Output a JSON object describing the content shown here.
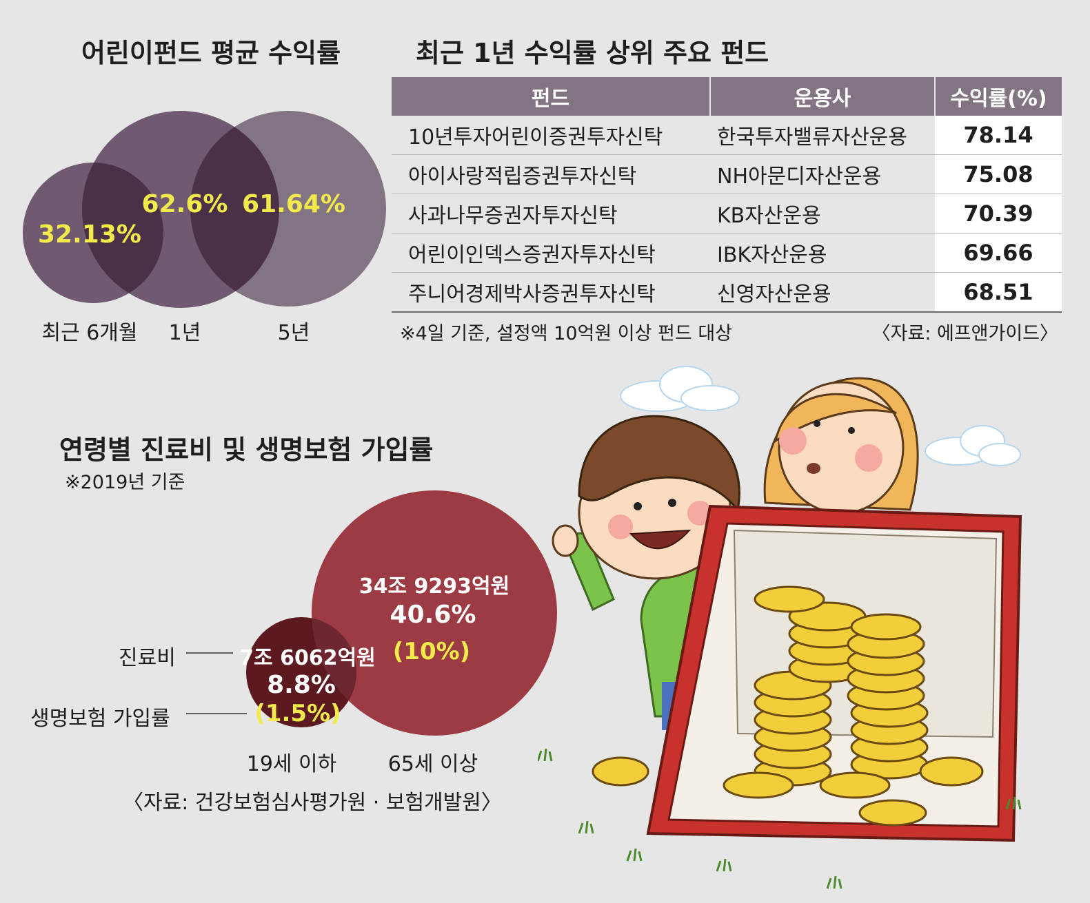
{
  "venn_chart": {
    "title": "어린이펀드 평균 수익률",
    "items": [
      {
        "label": "최근 6개월",
        "value": "32.13%"
      },
      {
        "label": "1년",
        "value": "62.6%"
      },
      {
        "label": "5년",
        "value": "61.64%"
      }
    ],
    "colors": {
      "circle": "#6f5a71",
      "overlap": "#4a3148",
      "value_text": "#f2ea4a"
    }
  },
  "fund_table": {
    "title": "최근 1년 수익률 상위 주요 펀드",
    "headers": [
      "펀드",
      "운용사",
      "수익률(%)"
    ],
    "rows": [
      [
        "10년투자어린이증권투자신탁",
        "한국투자밸류자산운용",
        "78.14"
      ],
      [
        "아이사랑적립증권투자신탁",
        "NH아문디자산운용",
        "75.08"
      ],
      [
        "사과나무증권자투자신탁",
        "KB자산운용",
        "70.39"
      ],
      [
        "어린이인덱스증권자투자신탁",
        "IBK자산운용",
        "69.66"
      ],
      [
        "주니어경제박사증권투자신탁",
        "신영자산운용",
        "68.51"
      ]
    ],
    "note": "※4일 기준, 설정액 10억원 이상 펀드 대상",
    "source": "〈자료: 에프앤가이드〉",
    "header_color": "#837484"
  },
  "medical_chart": {
    "title": "연령별 진료비 및 생명보험 가입률",
    "subtitle": "※2019년 기준",
    "legend": [
      "진료비",
      "생명보험 가입률"
    ],
    "groups": [
      {
        "label": "19세 이하",
        "amount": "7조 6062억원",
        "share": "8.8%",
        "insurance": "(1.5%)"
      },
      {
        "label": "65세 이상",
        "amount": "34조 9293억원",
        "share": "40.6%",
        "insurance": "(10%)"
      }
    ],
    "source": "〈자료: 건강보험심사평가원 · 보험개발원〉",
    "colors": {
      "small": "#5c1a20",
      "large": "#9c3b43",
      "insurance_text": "#f2ea4a"
    }
  },
  "chart_data": [
    {
      "type": "bubble",
      "title": "어린이펀드 평균 수익률",
      "categories": [
        "최근 6개월",
        "1년",
        "5년"
      ],
      "values": [
        32.13,
        62.6,
        61.64
      ],
      "unit": "%"
    },
    {
      "type": "table",
      "title": "최근 1년 수익률 상위 주요 펀드",
      "columns": [
        "펀드",
        "운용사",
        "수익률(%)"
      ],
      "rows": [
        [
          "10년투자어린이증권투자신탁",
          "한국투자밸류자산운용",
          78.14
        ],
        [
          "아이사랑적립증권투자신탁",
          "NH아문디자산운용",
          75.08
        ],
        [
          "사과나무증권자투자신탁",
          "KB자산운용",
          70.39
        ],
        [
          "어린이인덱스증권자투자신탁",
          "IBK자산운용",
          69.66
        ],
        [
          "주니어경제박사증권투자신탁",
          "신영자산운용",
          68.51
        ]
      ]
    },
    {
      "type": "bubble",
      "title": "연령별 진료비 및 생명보험 가입률",
      "categories": [
        "19세 이하",
        "65세 이상"
      ],
      "series": [
        {
          "name": "진료비",
          "values": [
            8.8,
            40.6
          ]
        },
        {
          "name": "생명보험 가입률",
          "values": [
            1.5,
            10
          ]
        }
      ],
      "unit": "%"
    }
  ]
}
